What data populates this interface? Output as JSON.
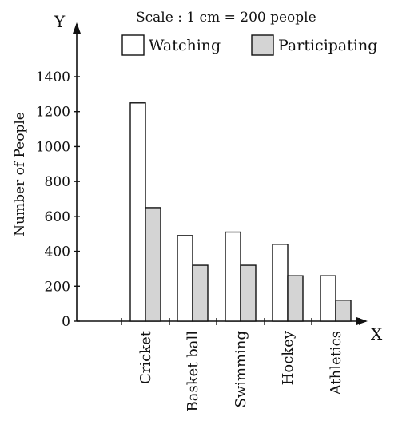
{
  "chart_data": {
    "type": "bar",
    "scale_note": "Scale : 1 cm = 200 people",
    "x_axis_letter": "X",
    "y_axis_letter": "Y",
    "ylabel": "Number of People",
    "xlabel": "",
    "categories": [
      "Cricket",
      "Basket ball",
      "Swimming",
      "Hockey",
      "Athletics"
    ],
    "series": [
      {
        "name": "Watching",
        "values": [
          1250,
          490,
          510,
          440,
          260
        ],
        "color": "#ffffff"
      },
      {
        "name": "Participating",
        "values": [
          650,
          320,
          320,
          260,
          120
        ],
        "color": "#d4d4d4"
      }
    ],
    "yticks": [
      "0",
      "200",
      "400",
      "600",
      "800",
      "1000",
      "1200",
      "1400"
    ],
    "ylim": [
      0,
      1400
    ],
    "legend_placement": "top",
    "grid": false
  }
}
